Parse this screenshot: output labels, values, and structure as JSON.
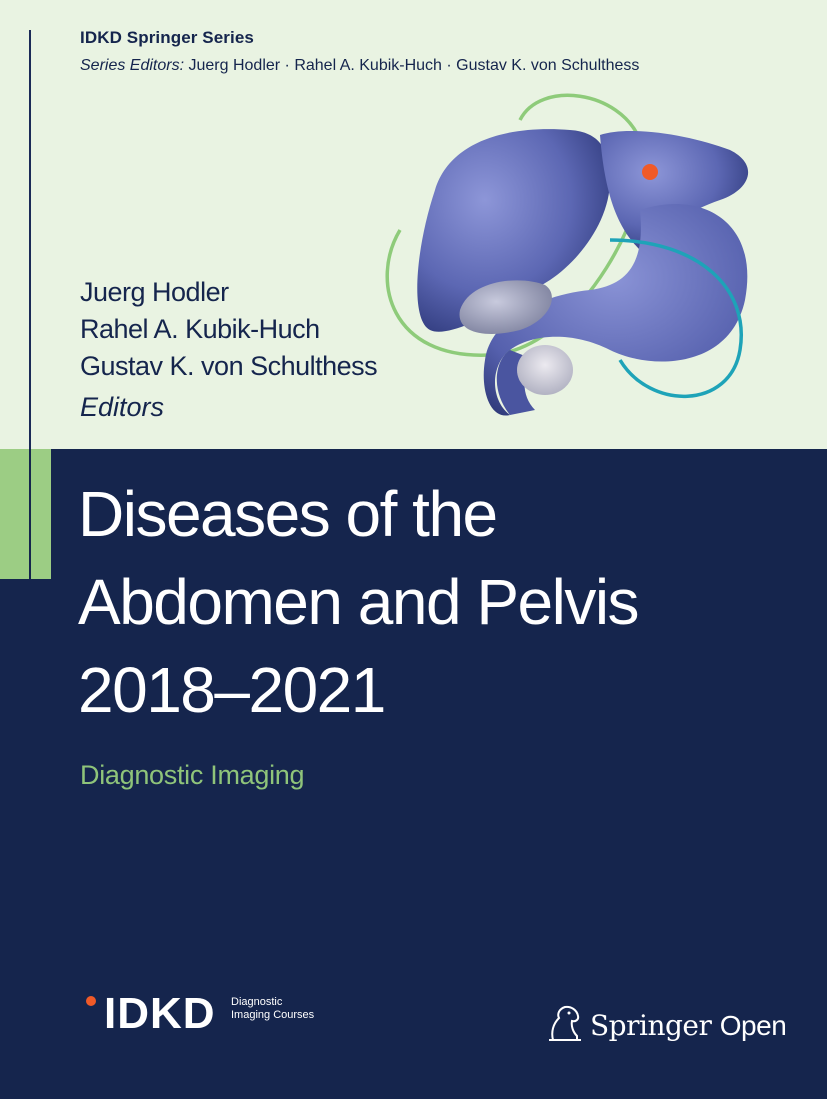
{
  "series": {
    "title": "IDKD Springer Series",
    "editors_label": "Series Editors:",
    "editors": "Juerg Hodler · Rahel A. Kubik-Huch · Gustav K. von Schulthess"
  },
  "editors": [
    "Juerg Hodler",
    "Rahel A. Kubik-Huch",
    "Gustav K. von Schulthess"
  ],
  "editors_label": "Editors",
  "book": {
    "title_lines": [
      "Diseases of the",
      "Abdomen and Pelvis",
      "2018–2021"
    ],
    "subtitle": "Diagnostic Imaging"
  },
  "logos": {
    "idkd": {
      "name": "IDKD",
      "line1": "Diagnostic",
      "line2": "Imaging Courses"
    },
    "publisher": {
      "name": "Springer",
      "suffix": "Open"
    }
  },
  "colors": {
    "navy": "#15254d",
    "pale_green": "#e9f3e2",
    "accent_green": "#9ccd84",
    "subtitle_green": "#8fc47a",
    "dot_orange": "#f05a28"
  },
  "illustration": "abdominal-organs-illustration"
}
